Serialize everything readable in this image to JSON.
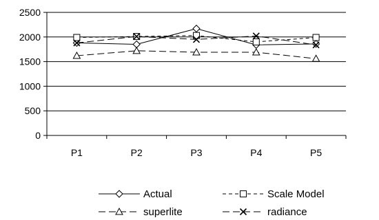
{
  "chart_data": {
    "type": "line",
    "title": "",
    "xlabel": "",
    "ylabel": "",
    "categories": [
      "P1",
      "P2",
      "P3",
      "P4",
      "P5"
    ],
    "ylim": [
      0,
      2500
    ],
    "yticks": [
      0,
      500,
      1000,
      1500,
      2000,
      2500
    ],
    "grid": "horizontal",
    "legend_position": "bottom",
    "series": [
      {
        "name": "Actual",
        "values": [
          1880,
          1850,
          2170,
          1840,
          1860
        ],
        "marker": "diamond",
        "dash": "solid"
      },
      {
        "name": "Scale Model",
        "values": [
          1990,
          2010,
          2030,
          1900,
          1990
        ],
        "marker": "square",
        "dash": "dashed"
      },
      {
        "name": "superlite",
        "values": [
          1620,
          1720,
          1690,
          1690,
          1560
        ],
        "marker": "triangle",
        "dash": "longdash"
      },
      {
        "name": "radiance",
        "values": [
          1880,
          2010,
          1950,
          2020,
          1840
        ],
        "marker": "x",
        "dash": "longdash"
      }
    ]
  }
}
